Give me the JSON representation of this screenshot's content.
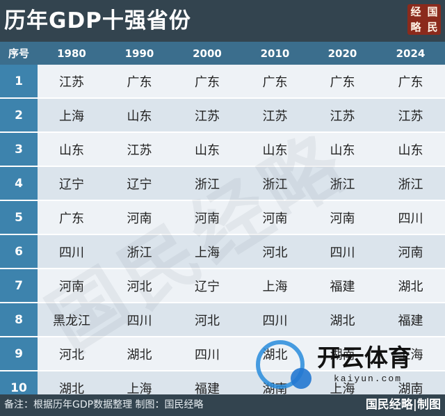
{
  "title": "历年GDP十强省份",
  "seal_chars": [
    "经",
    "国",
    "略",
    "民"
  ],
  "columns": [
    "序号",
    "1980",
    "1990",
    "2000",
    "2010",
    "2020",
    "2024"
  ],
  "rows": [
    {
      "rank": "1",
      "cells": [
        "江苏",
        "广东",
        "广东",
        "广东",
        "广东",
        "广东"
      ]
    },
    {
      "rank": "2",
      "cells": [
        "上海",
        "山东",
        "江苏",
        "江苏",
        "江苏",
        "江苏"
      ]
    },
    {
      "rank": "3",
      "cells": [
        "山东",
        "江苏",
        "山东",
        "山东",
        "山东",
        "山东"
      ]
    },
    {
      "rank": "4",
      "cells": [
        "辽宁",
        "辽宁",
        "浙江",
        "浙江",
        "浙江",
        "浙江"
      ]
    },
    {
      "rank": "5",
      "cells": [
        "广东",
        "河南",
        "河南",
        "河南",
        "河南",
        "四川"
      ]
    },
    {
      "rank": "6",
      "cells": [
        "四川",
        "浙江",
        "上海",
        "河北",
        "四川",
        "河南"
      ]
    },
    {
      "rank": "7",
      "cells": [
        "河南",
        "河北",
        "辽宁",
        "上海",
        "福建",
        "湖北"
      ]
    },
    {
      "rank": "8",
      "cells": [
        "黑龙江",
        "四川",
        "河北",
        "四川",
        "湖北",
        "福建"
      ]
    },
    {
      "rank": "9",
      "cells": [
        "河北",
        "湖北",
        "四川",
        "湖北",
        "湖南",
        "上海"
      ]
    },
    {
      "rank": "10",
      "cells": [
        "湖北",
        "上海",
        "福建",
        "湖南",
        "上海",
        "湖南"
      ]
    }
  ],
  "footer": {
    "note": "备注：根据历年GDP数据整理 制图：国民经略",
    "brand": "国民经略|制图"
  },
  "watermark": {
    "text": "开云体育",
    "url": "kaiyun.com",
    "background_text": "国民经略"
  },
  "colors": {
    "header_bg": "#33444f",
    "column_header_bg": "#3b6e8d",
    "index_bg": "#3d83ad",
    "row_light": "#eef2f6",
    "row_dark": "#dbe4ec",
    "seal_bg": "#8b2a1c"
  }
}
